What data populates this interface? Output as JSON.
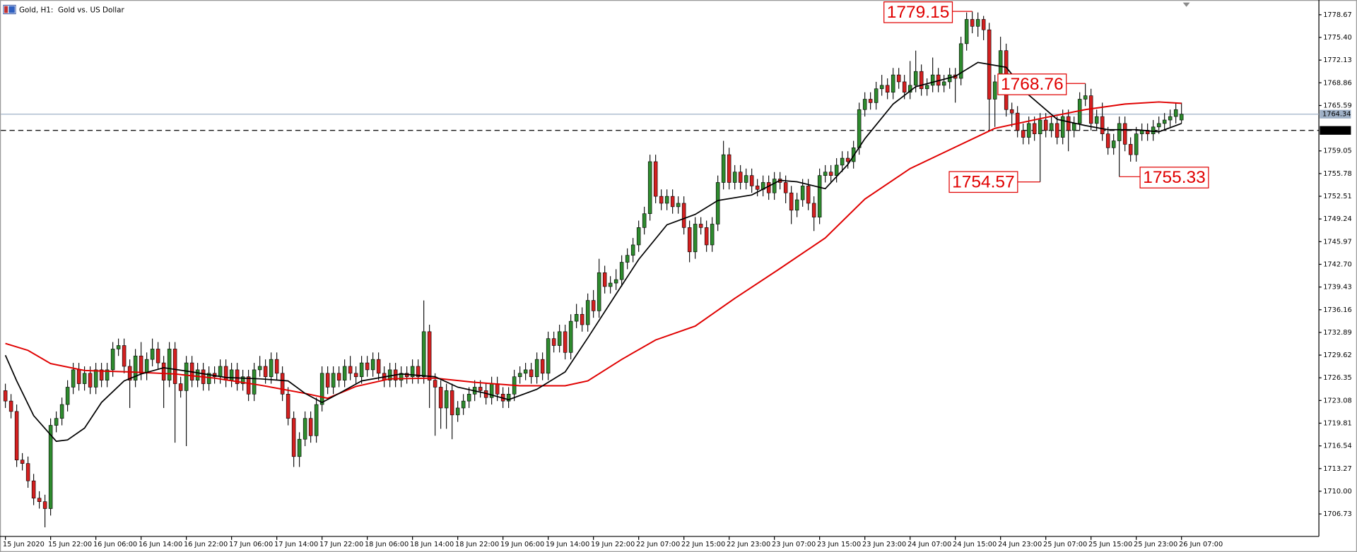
{
  "chart_data": {
    "type": "candlestick",
    "title": "Gold, H1:  Gold vs. US Dollar",
    "up_color": "#2e8b2e",
    "down_color": "#d42020",
    "xlim": [
      -0.8,
      232.3
    ],
    "ylim": [
      1703.49,
      1780.17
    ],
    "xticks": [
      {
        "value": 0,
        "label": "15 Jun 2020"
      },
      {
        "value": 8,
        "label": "15 Jun 22:00"
      },
      {
        "value": 16,
        "label": "16 Jun 06:00"
      },
      {
        "value": 24,
        "label": "16 Jun 14:00"
      },
      {
        "value": 32,
        "label": "16 Jun 22:00"
      },
      {
        "value": 40,
        "label": "17 Jun 06:00"
      },
      {
        "value": 48,
        "label": "17 Jun 14:00"
      },
      {
        "value": 56,
        "label": "17 Jun 22:00"
      },
      {
        "value": 64,
        "label": "18 Jun 06:00"
      },
      {
        "value": 72,
        "label": "18 Jun 14:00"
      },
      {
        "value": 80,
        "label": "18 Jun 22:00"
      },
      {
        "value": 88,
        "label": "19 Jun 06:00"
      },
      {
        "value": 96,
        "label": "19 Jun 14:00"
      },
      {
        "value": 104,
        "label": "19 Jun 22:00"
      },
      {
        "value": 112,
        "label": "22 Jun 07:00"
      },
      {
        "value": 120,
        "label": "22 Jun 15:00"
      },
      {
        "value": 128,
        "label": "22 Jun 23:00"
      },
      {
        "value": 136,
        "label": "23 Jun 07:00"
      },
      {
        "value": 144,
        "label": "23 Jun 15:00"
      },
      {
        "value": 152,
        "label": "23 Jun 23:00"
      },
      {
        "value": 160,
        "label": "24 Jun 07:00"
      },
      {
        "value": 168,
        "label": "24 Jun 15:00"
      },
      {
        "value": 176,
        "label": "24 Jun 23:00"
      },
      {
        "value": 184,
        "label": "25 Jun 07:00"
      },
      {
        "value": 192,
        "label": "25 Jun 15:00"
      },
      {
        "value": 200,
        "label": "25 Jun 23:00"
      },
      {
        "value": 208,
        "label": "26 Jun 07:00"
      }
    ],
    "yticks": [
      1778.67,
      {
        "value": 1775.4,
        "label": "1775.40"
      },
      1772.13,
      1768.86,
      1765.59,
      1759.05,
      1755.78,
      1752.51,
      1749.24,
      1745.97,
      {
        "value": 1742.7,
        "label": "1742.70"
      },
      1739.43,
      1736.16,
      1732.89,
      1729.62,
      1726.35,
      1723.08,
      1719.81,
      1716.54,
      1713.27,
      {
        "value": 1710,
        "label": "1710.00"
      },
      1706.73
    ],
    "grid": false,
    "current_price": {
      "value": 1764.34,
      "color": "#9eb0c6"
    },
    "level": {
      "value": 1762,
      "label": "1762.00",
      "color": "#000000"
    },
    "open": [
      1724.5,
      1723.0,
      1721.5,
      1714.5,
      1714.0,
      1711.5,
      1709.0,
      1708.5,
      1707.5,
      1719.5,
      1720.5,
      1722.5,
      1725.0,
      1727.5,
      1725.5,
      1727.0,
      1725.0,
      1727.5,
      1726.0,
      1727.5,
      1730.5,
      1731.0,
      1728.0,
      1726.0,
      1729.5,
      1727.0,
      1729.0,
      1730.5,
      1728.5,
      1726.0,
      1730.5,
      1725.5,
      1724.5,
      1728.5,
      1726.0,
      1727.5,
      1725.5,
      1727.0,
      1726.5,
      1728.0,
      1726.0,
      1727.5,
      1725.5,
      1726.5,
      1724.0,
      1727.5,
      1728.0,
      1726.5,
      1729.0,
      1727.0,
      1724.0,
      1720.5,
      1715.0,
      1717.5,
      1720.5,
      1718.0,
      1722.5,
      1727.0,
      1725.0,
      1727.0,
      1726.0,
      1728.0,
      1727.0,
      1726.5,
      1728.5,
      1727.5,
      1729.0,
      1727.0,
      1726.0,
      1727.5,
      1726.0,
      1727.0,
      1726.5,
      1728.0,
      1726.5,
      1733.0,
      1726.0,
      1725.0,
      1722.0,
      1724.5,
      1721.0,
      1722.0,
      1723.0,
      1724.0,
      1725.0,
      1724.5,
      1723.5,
      1725.5,
      1724.0,
      1723.0,
      1724.0,
      1726.5,
      1727.0,
      1727.5,
      1726.5,
      1729.0,
      1727.0,
      1732.0,
      1731.0,
      1733.0,
      1730.0,
      1734.5,
      1735.5,
      1734.0,
      1737.5,
      1736.0,
      1741.5,
      1739.5,
      1740.0,
      1740.5,
      1743.0,
      1744.0,
      1745.5,
      1748.0,
      1750.0,
      1757.5,
      1752.5,
      1751.5,
      1752.5,
      1751.0,
      1751.5,
      1748.0,
      1744.5,
      1748.5,
      1748.0,
      1745.5,
      1748.5,
      1754.5,
      1758.5,
      1754.5,
      1756.0,
      1754.5,
      1755.5,
      1754.0,
      1753.5,
      1754.5,
      1753.0,
      1755.0,
      1754.5,
      1753.0,
      1750.5,
      1752.0,
      1754.0,
      1751.5,
      1749.5,
      1755.5,
      1756.0,
      1755.5,
      1757.0,
      1758.0,
      1757.5,
      1759.5,
      1765.0,
      1766.5,
      1766.0,
      1768.0,
      1768.5,
      1767.5,
      1770.0,
      1769.0,
      1767.5,
      1768.5,
      1770.5,
      1768.0,
      1768.5,
      1770.0,
      1768.5,
      1769.0,
      1770.0,
      1769.5,
      1774.5,
      1778.0,
      1777.0,
      1778.0,
      1776.5,
      1766.5,
      1769.0,
      1773.5,
      1765.0,
      1764.5,
      1762.0,
      1761.0,
      1763.0,
      1761.5,
      1763.5,
      1762.0,
      1763.0,
      1761.0,
      1764.0,
      1762.0,
      1763.0,
      1766.5,
      1767.0,
      1763.0,
      1764.0,
      1761.5,
      1759.5,
      1760.5,
      1763.0,
      1760.0,
      1758.5,
      1761.5,
      1762.0,
      1761.5,
      1762.5,
      1763.0,
      1763.5,
      1764.0,
      1763.5
    ],
    "high": [
      1725.5,
      1724.0,
      1722.5,
      1715.5,
      1715.0,
      1712.5,
      1710.0,
      1709.5,
      1720.5,
      1721.5,
      1723.5,
      1726.0,
      1728.5,
      1728.5,
      1728.0,
      1728.0,
      1728.5,
      1728.5,
      1728.5,
      1731.5,
      1732.0,
      1732.0,
      1729.0,
      1730.5,
      1731.5,
      1730.0,
      1732.0,
      1731.5,
      1729.5,
      1731.5,
      1731.5,
      1726.5,
      1729.5,
      1729.5,
      1728.5,
      1728.5,
      1728.0,
      1728.0,
      1729.0,
      1729.0,
      1728.5,
      1728.5,
      1727.5,
      1727.5,
      1728.5,
      1729.5,
      1729.0,
      1730.0,
      1730.0,
      1728.0,
      1725.0,
      1721.5,
      1718.5,
      1721.5,
      1721.5,
      1723.5,
      1728.0,
      1728.0,
      1728.0,
      1728.0,
      1729.0,
      1729.5,
      1728.0,
      1729.5,
      1729.5,
      1730.0,
      1730.0,
      1728.0,
      1728.5,
      1728.5,
      1728.0,
      1728.0,
      1729.0,
      1729.0,
      1737.5,
      1734.0,
      1727.0,
      1726.0,
      1725.5,
      1725.5,
      1723.0,
      1724.0,
      1725.0,
      1726.0,
      1726.0,
      1725.5,
      1726.5,
      1726.5,
      1725.0,
      1725.0,
      1727.5,
      1728.0,
      1728.5,
      1728.5,
      1730.0,
      1730.0,
      1733.0,
      1733.0,
      1734.0,
      1734.0,
      1735.5,
      1737.0,
      1736.5,
      1738.5,
      1739.0,
      1743.5,
      1742.5,
      1741.0,
      1742.0,
      1744.0,
      1745.0,
      1746.5,
      1749.0,
      1751.0,
      1758.5,
      1758.5,
      1753.5,
      1753.5,
      1753.5,
      1752.5,
      1752.5,
      1749.0,
      1749.5,
      1749.5,
      1749.0,
      1749.5,
      1755.5,
      1760.5,
      1759.5,
      1757.0,
      1757.0,
      1756.5,
      1756.5,
      1755.0,
      1755.5,
      1755.5,
      1756.0,
      1756.0,
      1755.5,
      1754.0,
      1753.0,
      1755.0,
      1755.0,
      1752.5,
      1756.5,
      1757.0,
      1757.0,
      1758.0,
      1759.0,
      1759.0,
      1760.5,
      1766.0,
      1767.5,
      1767.5,
      1769.0,
      1770.0,
      1769.5,
      1771.0,
      1771.0,
      1770.0,
      1772.0,
      1773.5,
      1771.5,
      1769.5,
      1772.5,
      1771.0,
      1770.0,
      1771.0,
      1771.0,
      1775.5,
      1779.0,
      1779.15,
      1779.0,
      1778.5,
      1777.5,
      1770.0,
      1775.5,
      1774.5,
      1766.0,
      1765.5,
      1763.0,
      1764.0,
      1764.0,
      1764.5,
      1764.5,
      1764.0,
      1764.0,
      1765.0,
      1765.0,
      1764.0,
      1767.5,
      1768.76,
      1768.0,
      1765.0,
      1766.0,
      1762.5,
      1761.5,
      1764.0,
      1764.0,
      1761.0,
      1762.5,
      1763.0,
      1763.0,
      1763.5,
      1764.0,
      1764.5,
      1765.0,
      1766.0,
      1766.0
    ],
    "low": [
      1722.0,
      1720.5,
      1713.5,
      1713.0,
      1710.5,
      1708.0,
      1707.5,
      1704.8,
      1706.5,
      1718.5,
      1719.5,
      1721.5,
      1724.0,
      1724.5,
      1724.5,
      1724.0,
      1724.0,
      1725.0,
      1725.0,
      1726.5,
      1729.5,
      1727.0,
      1722.0,
      1725.0,
      1726.0,
      1726.0,
      1728.0,
      1727.5,
      1722.0,
      1725.0,
      1717.0,
      1723.5,
      1716.5,
      1725.0,
      1725.0,
      1724.5,
      1724.5,
      1725.5,
      1725.5,
      1725.0,
      1725.0,
      1724.5,
      1724.5,
      1723.0,
      1723.0,
      1726.5,
      1725.5,
      1725.5,
      1726.0,
      1723.0,
      1719.5,
      1713.5,
      1713.5,
      1716.5,
      1717.0,
      1717.0,
      1721.5,
      1724.0,
      1724.0,
      1725.0,
      1725.0,
      1726.0,
      1725.5,
      1725.5,
      1726.5,
      1726.5,
      1726.0,
      1725.0,
      1725.0,
      1725.0,
      1725.0,
      1725.5,
      1725.5,
      1725.5,
      1725.5,
      1722.0,
      1718.0,
      1719.0,
      1719.0,
      1717.5,
      1720.0,
      1721.0,
      1722.0,
      1723.0,
      1723.5,
      1722.5,
      1722.5,
      1723.0,
      1722.0,
      1722.0,
      1723.0,
      1725.5,
      1726.0,
      1725.5,
      1725.5,
      1726.0,
      1726.0,
      1730.0,
      1730.0,
      1729.0,
      1729.0,
      1733.5,
      1733.0,
      1733.0,
      1735.0,
      1735.0,
      1738.5,
      1738.5,
      1739.0,
      1739.5,
      1742.0,
      1743.0,
      1744.5,
      1747.0,
      1749.0,
      1751.5,
      1750.5,
      1750.5,
      1750.0,
      1750.0,
      1747.0,
      1743.0,
      1743.5,
      1747.0,
      1744.5,
      1744.5,
      1747.5,
      1753.5,
      1753.5,
      1753.5,
      1753.5,
      1753.5,
      1753.0,
      1752.5,
      1752.5,
      1752.0,
      1752.0,
      1753.5,
      1751.5,
      1748.5,
      1749.5,
      1751.0,
      1750.5,
      1747.5,
      1748.5,
      1754.5,
      1754.5,
      1754.5,
      1756.0,
      1756.5,
      1756.5,
      1758.5,
      1764.0,
      1765.0,
      1765.0,
      1767.0,
      1766.5,
      1766.5,
      1768.0,
      1766.5,
      1766.5,
      1767.5,
      1767.0,
      1767.0,
      1767.5,
      1767.5,
      1767.5,
      1768.0,
      1766.0,
      1768.5,
      1773.5,
      1776.0,
      1775.5,
      1775.0,
      1762.0,
      1762.5,
      1768.0,
      1764.0,
      1762.5,
      1761.0,
      1760.0,
      1760.0,
      1760.5,
      1754.57,
      1761.0,
      1761.0,
      1760.0,
      1760.0,
      1759.0,
      1761.0,
      1762.0,
      1765.5,
      1762.0,
      1762.0,
      1760.5,
      1758.5,
      1758.5,
      1755.33,
      1759.0,
      1757.5,
      1757.5,
      1760.5,
      1760.5,
      1760.5,
      1761.5,
      1762.0,
      1762.5,
      1763.0,
      1763.0
    ],
    "close": [
      1723.0,
      1721.5,
      1714.5,
      1714.0,
      1711.5,
      1709.0,
      1708.5,
      1707.5,
      1719.5,
      1720.5,
      1722.5,
      1725.0,
      1727.5,
      1725.5,
      1727.0,
      1725.0,
      1727.5,
      1726.0,
      1727.5,
      1730.5,
      1731.0,
      1728.0,
      1726.0,
      1729.5,
      1727.0,
      1729.0,
      1730.5,
      1728.5,
      1726.0,
      1730.5,
      1725.5,
      1724.5,
      1728.5,
      1726.0,
      1727.5,
      1725.5,
      1727.0,
      1726.5,
      1728.0,
      1726.0,
      1727.5,
      1725.5,
      1726.5,
      1724.0,
      1727.5,
      1728.0,
      1726.5,
      1729.0,
      1727.0,
      1724.0,
      1720.5,
      1715.0,
      1717.5,
      1720.5,
      1718.0,
      1722.5,
      1727.0,
      1725.0,
      1727.0,
      1726.0,
      1728.0,
      1727.0,
      1726.5,
      1728.5,
      1727.5,
      1729.0,
      1727.0,
      1726.0,
      1727.5,
      1726.0,
      1727.0,
      1726.5,
      1728.0,
      1726.5,
      1733.0,
      1726.0,
      1725.0,
      1722.0,
      1724.5,
      1721.0,
      1722.0,
      1723.0,
      1724.0,
      1725.0,
      1724.5,
      1723.5,
      1725.5,
      1724.0,
      1723.0,
      1724.0,
      1726.5,
      1727.0,
      1727.5,
      1726.5,
      1729.0,
      1727.0,
      1732.0,
      1731.0,
      1733.0,
      1730.0,
      1734.5,
      1735.5,
      1734.0,
      1737.5,
      1736.0,
      1741.5,
      1739.5,
      1740.0,
      1740.5,
      1743.0,
      1744.0,
      1745.5,
      1748.0,
      1750.0,
      1757.5,
      1752.5,
      1751.5,
      1752.5,
      1751.0,
      1751.5,
      1748.0,
      1744.5,
      1748.5,
      1748.0,
      1745.5,
      1748.5,
      1754.5,
      1758.5,
      1754.5,
      1756.0,
      1754.5,
      1755.5,
      1754.0,
      1753.5,
      1754.5,
      1753.0,
      1755.0,
      1754.5,
      1753.0,
      1750.5,
      1752.0,
      1754.0,
      1751.5,
      1749.5,
      1755.5,
      1756.0,
      1755.5,
      1757.0,
      1758.0,
      1757.5,
      1759.5,
      1765.0,
      1766.5,
      1766.0,
      1768.0,
      1768.5,
      1767.5,
      1770.0,
      1769.0,
      1767.5,
      1768.5,
      1770.5,
      1768.0,
      1768.5,
      1770.0,
      1768.5,
      1769.0,
      1770.0,
      1769.5,
      1774.5,
      1778.0,
      1777.0,
      1778.0,
      1776.5,
      1766.5,
      1769.0,
      1773.5,
      1765.0,
      1764.5,
      1762.0,
      1761.0,
      1763.0,
      1761.5,
      1763.5,
      1762.0,
      1763.0,
      1761.0,
      1764.0,
      1762.0,
      1763.0,
      1766.5,
      1767.0,
      1763.0,
      1764.0,
      1761.5,
      1759.5,
      1760.5,
      1763.0,
      1760.0,
      1758.5,
      1761.5,
      1762.0,
      1761.5,
      1762.5,
      1763.0,
      1763.5,
      1764.0,
      1765.0,
      1764.34
    ],
    "lines": [
      {
        "color": "#e00000",
        "width": 1.6,
        "x": [
          0,
          4,
          8,
          14,
          22,
          30,
          37,
          45,
          53,
          57,
          62,
          68,
          76,
          83,
          91,
          99,
          103,
          109,
          115,
          122,
          129,
          137,
          145,
          152,
          160,
          168,
          175,
          183,
          191,
          198,
          204,
          208
        ],
        "values": [
          1731.3,
          1730.3,
          1728.4,
          1727.4,
          1727.2,
          1726.9,
          1726.3,
          1725.3,
          1724.1,
          1723.4,
          1725.1,
          1726.2,
          1726.3,
          1725.7,
          1725.2,
          1725.2,
          1725.9,
          1729.0,
          1731.8,
          1733.8,
          1737.8,
          1742.1,
          1746.5,
          1752.1,
          1756.5,
          1759.6,
          1762.3,
          1763.7,
          1765.0,
          1765.8,
          1766.1,
          1765.9
        ]
      },
      {
        "color": "#000000",
        "width": 1.4,
        "x": [
          0,
          2,
          5,
          9,
          11,
          14,
          17,
          21,
          24,
          28,
          33,
          39,
          45,
          50,
          53,
          56,
          59,
          63,
          70,
          76,
          80,
          85,
          89,
          94,
          99,
          103,
          108,
          112,
          117,
          122,
          126,
          132,
          137,
          140,
          145,
          149,
          152,
          157,
          161,
          168,
          172,
          177,
          181,
          186,
          191,
          195,
          200,
          204,
          208
        ],
        "values": [
          1729.6,
          1725.9,
          1720.9,
          1717.2,
          1717.4,
          1719.1,
          1722.8,
          1725.9,
          1726.9,
          1727.8,
          1727.2,
          1726.4,
          1726.2,
          1725.9,
          1724.1,
          1722.8,
          1724.1,
          1725.9,
          1726.9,
          1726.5,
          1725.0,
          1724.1,
          1723.2,
          1724.7,
          1727.2,
          1732.1,
          1738.4,
          1743.4,
          1748.4,
          1749.9,
          1751.9,
          1752.7,
          1754.8,
          1754.6,
          1753.6,
          1757.1,
          1760.8,
          1765.8,
          1768.3,
          1769.8,
          1771.8,
          1771.1,
          1767.1,
          1763.6,
          1762.7,
          1762.1,
          1762.1,
          1761.8,
          1763.0
        ]
      }
    ],
    "annotation_color": "#e00000",
    "annotations": [
      {
        "x": 171,
        "y": 1779.15
      },
      {
        "x": 191,
        "y": 1768.76
      },
      {
        "x": 183,
        "y": 1754.57
      },
      {
        "x": 197,
        "y": 1755.33
      }
    ]
  }
}
